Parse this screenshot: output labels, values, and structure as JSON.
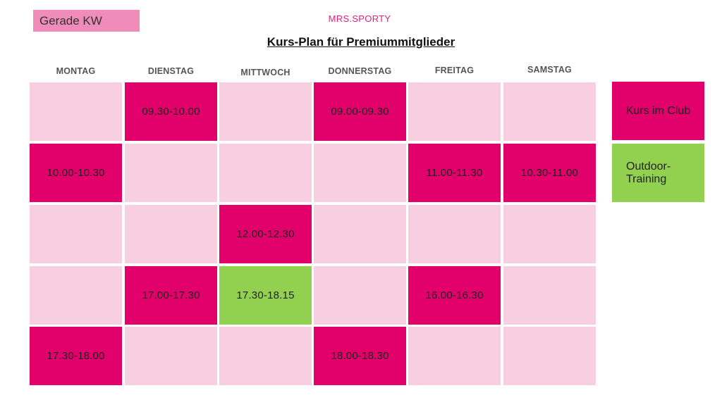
{
  "header": {
    "week_label": "Gerade KW",
    "brand": "MRS.SPORTY",
    "title": "Kurs-Plan für Premiummitglieder"
  },
  "days": [
    "MONTAG",
    "DIENSTAG",
    "MITTWOCH",
    "DONNERSTAG",
    "FREITAG",
    "SAMSTAG"
  ],
  "colors": {
    "club": "#e2006a",
    "outdoor": "#92d050",
    "empty": "#f7cfe0",
    "week_badge": "#f08cb9",
    "brand": "#e0207a"
  },
  "grid": [
    [
      {
        "type": "empty",
        "text": ""
      },
      {
        "type": "club",
        "text": "09.30-10.00"
      },
      {
        "type": "empty",
        "text": ""
      },
      {
        "type": "club",
        "text": "09.00-09.30"
      },
      {
        "type": "empty",
        "text": ""
      },
      {
        "type": "empty",
        "text": ""
      }
    ],
    [
      {
        "type": "club",
        "text": "10.00-10.30"
      },
      {
        "type": "empty",
        "text": ""
      },
      {
        "type": "empty",
        "text": ""
      },
      {
        "type": "empty",
        "text": ""
      },
      {
        "type": "club",
        "text": "11.00-11.30"
      },
      {
        "type": "club",
        "text": "10.30-11.00"
      }
    ],
    [
      {
        "type": "empty",
        "text": ""
      },
      {
        "type": "empty",
        "text": ""
      },
      {
        "type": "club",
        "text": "12.00-12.30"
      },
      {
        "type": "empty",
        "text": ""
      },
      {
        "type": "empty",
        "text": ""
      },
      {
        "type": "empty",
        "text": ""
      }
    ],
    [
      {
        "type": "empty",
        "text": ""
      },
      {
        "type": "club",
        "text": "17.00-17.30"
      },
      {
        "type": "outdoor",
        "text": "17.30-18.15"
      },
      {
        "type": "empty",
        "text": ""
      },
      {
        "type": "club",
        "text": "16.00-16.30"
      },
      {
        "type": "empty",
        "text": ""
      }
    ],
    [
      {
        "type": "club",
        "text": "17.30-18.00"
      },
      {
        "type": "empty",
        "text": ""
      },
      {
        "type": "empty",
        "text": ""
      },
      {
        "type": "club",
        "text": "18.00-18.30"
      },
      {
        "type": "empty",
        "text": ""
      },
      {
        "type": "empty",
        "text": ""
      }
    ]
  ],
  "legend": {
    "club": "Kurs im Club",
    "outdoor": "Outdoor-Training"
  }
}
